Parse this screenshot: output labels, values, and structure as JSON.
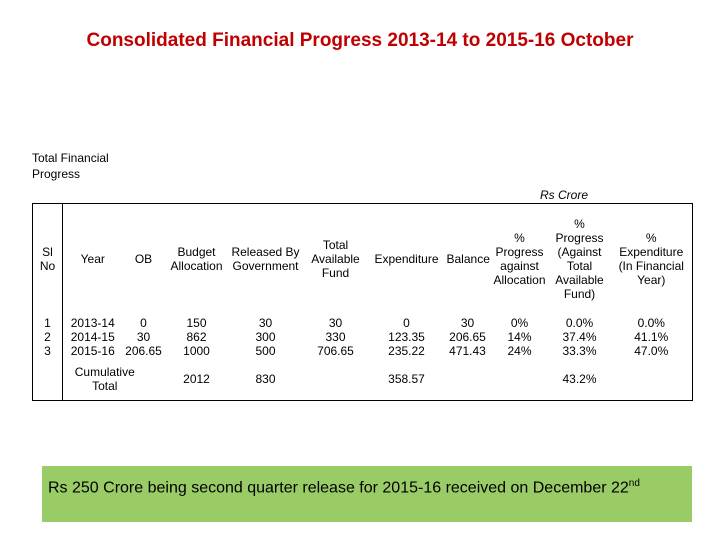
{
  "title": "Consolidated Financial Progress 2013-14 to 2015-16 October",
  "subtitle": "Total Financial Progress",
  "unit": "Rs Crore",
  "table": {
    "headers": {
      "slno": "Sl No",
      "year": "Year",
      "ob": "OB",
      "budget": "Budget Allocation",
      "released": "Released By Government",
      "total_available": "Total Available Fund",
      "expenditure": "Expenditure",
      "balance": "Balance",
      "pct_allocation": "% Progress against Allocation",
      "pct_available": "% Progress (Against Total Available Fund)",
      "pct_expenditure": "% Expenditure (In Financial Year)"
    },
    "rows": [
      {
        "slno": "1",
        "year": "2013-14",
        "ob": "0",
        "budget": "150",
        "released": "30",
        "total": "30",
        "exp": "0",
        "bal": "30",
        "pa": "0%",
        "pb": "0.0%",
        "pc": "0.0%"
      },
      {
        "slno": "2",
        "year": "2014-15",
        "ob": "30",
        "budget": "862",
        "released": "300",
        "total": "330",
        "exp": "123.35",
        "bal": "206.65",
        "pa": "14%",
        "pb": "37.4%",
        "pc": "41.1%"
      },
      {
        "slno": "3",
        "year": "2015-16",
        "ob": "206.65",
        "budget": "1000",
        "released": "500",
        "total": "706.65",
        "exp": "235.22",
        "bal": "471.43",
        "pa": "24%",
        "pb": "33.3%",
        "pc": "47.0%"
      }
    ],
    "cumulative": {
      "label": "Cumulative Total",
      "budget": "2012",
      "released": "830",
      "exp": "358.57",
      "pct": "43.2%"
    }
  },
  "note": {
    "text": "Rs 250 Crore being second quarter release for 2015-16 received on December 22",
    "sup": "nd"
  }
}
